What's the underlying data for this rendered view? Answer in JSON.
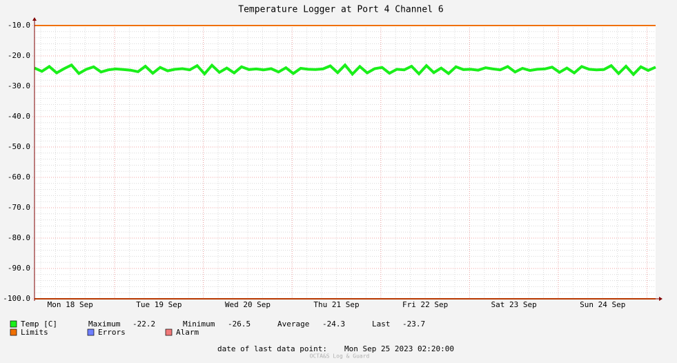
{
  "chart_data": {
    "type": "line",
    "title": "Temperature Logger at Port 4 Channel 6",
    "xlim": [
      0,
      168
    ],
    "xticks": [
      {
        "value": 9.67,
        "label": "Mon 18 Sep"
      },
      {
        "value": 33.67,
        "label": "Tue 19 Sep"
      },
      {
        "value": 57.67,
        "label": "Wed 20 Sep"
      },
      {
        "value": 81.67,
        "label": "Thu 21 Sep"
      },
      {
        "value": 105.67,
        "label": "Fri 22 Sep"
      },
      {
        "value": 129.67,
        "label": "Sat 23 Sep"
      },
      {
        "value": 153.67,
        "label": "Sun 24 Sep"
      }
    ],
    "xmajorgrid": [
      21.67,
      45.67,
      69.67,
      93.67,
      117.67,
      141.67,
      165.67
    ],
    "ylim": [
      -100,
      -10
    ],
    "yticks": [
      {
        "value": -10,
        "label": "-10.0"
      },
      {
        "value": -20,
        "label": "-20.0"
      },
      {
        "value": -30,
        "label": "-30.0"
      },
      {
        "value": -40,
        "label": "-40.0"
      },
      {
        "value": -50,
        "label": "-50.0"
      },
      {
        "value": -60,
        "label": "-60.0"
      },
      {
        "value": -70,
        "label": "-70.0"
      },
      {
        "value": -80,
        "label": "-80.0"
      },
      {
        "value": -90,
        "label": "-90.0"
      },
      {
        "value": -100,
        "label": "-100.0"
      }
    ],
    "grid": true,
    "minor_grid": {
      "x_step": 4,
      "y_step": 2
    },
    "series": [
      {
        "name": "Temp [C]",
        "color": "#1aef1a",
        "x": [
          0,
          2,
          4,
          6,
          8,
          10,
          12,
          14,
          16,
          18,
          20,
          22,
          24,
          26,
          28,
          30,
          32,
          34,
          36,
          38,
          40,
          42,
          44,
          46,
          48,
          50,
          52,
          54,
          56,
          58,
          60,
          62,
          64,
          66,
          68,
          70,
          72,
          74,
          76,
          78,
          80,
          82,
          84,
          86,
          88,
          90,
          92,
          94,
          96,
          98,
          100,
          102,
          104,
          106,
          108,
          110,
          112,
          114,
          116,
          118,
          120,
          122,
          124,
          126,
          128,
          130,
          132,
          134,
          136,
          138,
          140,
          142,
          144,
          146,
          148,
          150,
          152,
          154,
          156,
          158,
          160,
          162,
          164,
          166,
          168
        ],
        "values": [
          -24.0,
          -25.1,
          -23.5,
          -25.6,
          -24.2,
          -23.0,
          -25.8,
          -24.4,
          -23.6,
          -25.3,
          -24.6,
          -24.3,
          -24.5,
          -24.7,
          -25.2,
          -23.4,
          -25.7,
          -23.8,
          -24.9,
          -24.4,
          -24.2,
          -24.6,
          -23.2,
          -25.9,
          -23.1,
          -25.4,
          -24.0,
          -25.6,
          -23.6,
          -24.5,
          -24.3,
          -24.6,
          -24.2,
          -25.3,
          -23.9,
          -25.8,
          -24.1,
          -24.4,
          -24.5,
          -24.3,
          -23.3,
          -25.5,
          -23.0,
          -26.0,
          -23.5,
          -25.6,
          -24.2,
          -23.8,
          -25.7,
          -24.4,
          -24.6,
          -23.4,
          -25.9,
          -23.2,
          -25.5,
          -24.0,
          -25.8,
          -23.6,
          -24.5,
          -24.4,
          -24.7,
          -23.9,
          -24.3,
          -24.6,
          -23.5,
          -25.3,
          -24.1,
          -24.8,
          -24.4,
          -24.3,
          -23.7,
          -25.4,
          -24.0,
          -25.6,
          -23.5,
          -24.4,
          -24.6,
          -24.5,
          -23.2,
          -25.8,
          -23.4,
          -26.1,
          -23.6,
          -24.8,
          -23.7
        ]
      }
    ],
    "stats": [
      {
        "label": "Maximum",
        "value": -22.2
      },
      {
        "label": "Minimum",
        "value": -26.5
      },
      {
        "label": "Average",
        "value": -24.3
      },
      {
        "label": "Last",
        "value": -23.7
      }
    ],
    "limits": {
      "name": "Limits",
      "color": "#f07000",
      "values": [
        -10,
        -100
      ]
    },
    "legend_extra": [
      {
        "name": "Errors",
        "color": "#6f7fff"
      },
      {
        "name": "Alarm",
        "color": "#f07878"
      }
    ],
    "footer": {
      "label": "date of last data point:",
      "value": "Mon Sep 25 2023 02:20:00"
    },
    "watermark": "OCTA&S Log & Guard"
  }
}
